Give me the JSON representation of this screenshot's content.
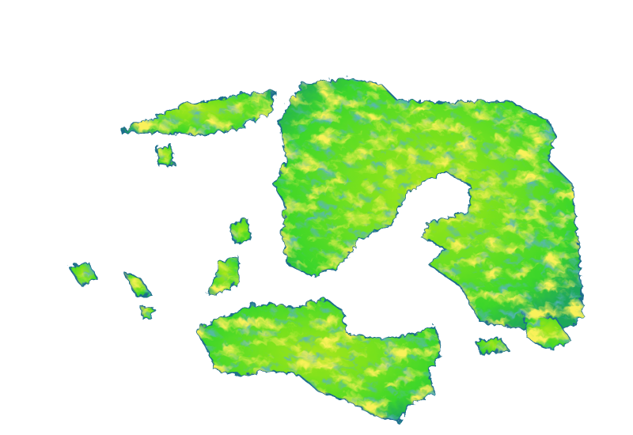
{
  "map": {
    "type": "terrain-elevation-rendering",
    "background": "#ffffff",
    "colors": {
      "low": "#1e6e8c",
      "mid_low": "#1fa85a",
      "mid": "#3cd62a",
      "high": "#a6e61a",
      "peak": "#f2e21a"
    }
  }
}
